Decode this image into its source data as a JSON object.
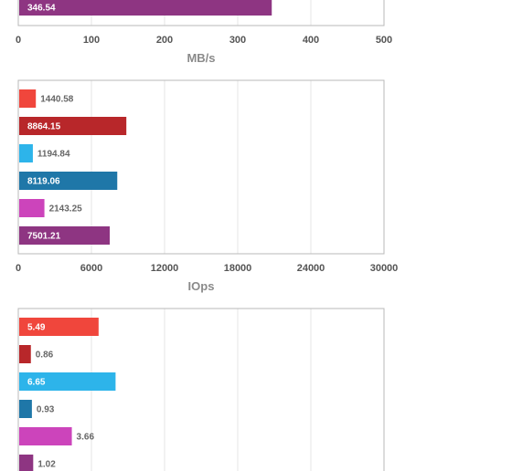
{
  "colors": [
    "#f0463c",
    "#b8272a",
    "#2db4ea",
    "#1f77a8",
    "#cc44bb",
    "#8e3582"
  ],
  "chart_data": [
    {
      "type": "bar",
      "orientation": "horizontal",
      "xlabel": "MB/s",
      "xlim": [
        0,
        500
      ],
      "xticks": [
        "0",
        "100",
        "200",
        "300",
        "400",
        "500"
      ],
      "values": [
        346.54
      ],
      "labels": [
        "346.54"
      ],
      "colors": [
        "#8e3582"
      ],
      "grid": true,
      "partially_visible": true
    },
    {
      "type": "bar",
      "orientation": "horizontal",
      "xlabel": "IOps",
      "xlim": [
        0,
        30000
      ],
      "xticks": [
        "0",
        "6000",
        "12000",
        "18000",
        "24000",
        "30000"
      ],
      "values": [
        1440.58,
        8864.15,
        1194.84,
        8119.06,
        2143.25,
        7501.21
      ],
      "labels": [
        "1440.58",
        "8864.15",
        "1194.84",
        "8119.06",
        "2143.25",
        "7501.21"
      ],
      "colors": [
        "#f0463c",
        "#b8272a",
        "#2db4ea",
        "#1f77a8",
        "#cc44bb",
        "#8e3582"
      ],
      "grid": true
    },
    {
      "type": "bar",
      "orientation": "horizontal",
      "xlabel": "",
      "xlim": [
        0,
        25
      ],
      "values": [
        5.49,
        0.86,
        6.65,
        0.93,
        3.66,
        1.02
      ],
      "labels": [
        "5.49",
        "0.86",
        "6.65",
        "0.93",
        "3.66",
        "1.02"
      ],
      "colors": [
        "#f0463c",
        "#b8272a",
        "#2db4ea",
        "#1f77a8",
        "#cc44bb",
        "#8e3582"
      ],
      "grid": true,
      "partially_visible": true
    }
  ]
}
